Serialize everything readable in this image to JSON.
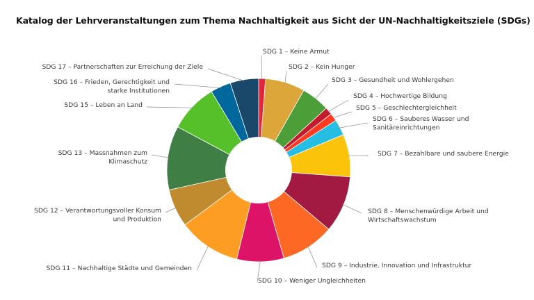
{
  "chart_data": {
    "type": "pie",
    "title": "Katalog der Lehrveranstaltungen zum Thema Nachhaltigkeit aus Sicht der UN-Nachhaltigkeitsziele (SDGs)",
    "slices": [
      {
        "label": [
          "SDG 1 – Keine Armut"
        ],
        "value": 1.2,
        "color": "#E5243B"
      },
      {
        "label": [
          "SDG 2 – Kein Hunger"
        ],
        "value": 7.0,
        "color": "#DDA63A"
      },
      {
        "label": [
          "SDG 3 – Gesundheit und Wohlergehen"
        ],
        "value": 5.0,
        "color": "#4C9F38"
      },
      {
        "label": [
          "SDG 4 – Hochwertige Bildung"
        ],
        "value": 1.3,
        "color": "#C5192D"
      },
      {
        "label": [
          "SDG 5 – Geschlechtergleichheit"
        ],
        "value": 1.4,
        "color": "#FF3A21"
      },
      {
        "label": [
          "SDG 6 – Sauberes Wasser und",
          "Sanitäreinrichtungen"
        ],
        "value": 2.8,
        "color": "#26BDE2"
      },
      {
        "label": [
          "SDG 7 – Bezahlbare und saubere Energie"
        ],
        "value": 7.5,
        "color": "#FCC30B"
      },
      {
        "label": [
          "SDG 8 – Menschenwürdige Arbeit und",
          "Wirtschaftswachstum"
        ],
        "value": 10.0,
        "color": "#A21942"
      },
      {
        "label": [
          "SDG 9 – Industrie, Innovation und Infrastruktur"
        ],
        "value": 9.4,
        "color": "#FD6925"
      },
      {
        "label": [
          "SDG 10 – Weniger Ungleichheiten"
        ],
        "value": 8.3,
        "color": "#DD1367"
      },
      {
        "label": [
          "SDG 11 – Nachhaltige Städte und Gemeinden"
        ],
        "value": 11.0,
        "color": "#FD9D24"
      },
      {
        "label": [
          "SDG 12 – Verantwortungsvoller Konsum",
          "und Produktion"
        ],
        "value": 6.7,
        "color": "#BF8B2E"
      },
      {
        "label": [
          "SDG 13 – Massnahmen zum",
          "Klimaschutz"
        ],
        "value": 11.3,
        "color": "#3F7E44"
      },
      {
        "label": [
          "SDG 15 – Leben an Land"
        ],
        "value": 8.6,
        "color": "#56C02B"
      },
      {
        "label": [
          "SDG 16 – Frieden, Gerechtigkeit und",
          "starke Institutionen"
        ],
        "value": 3.6,
        "color": "#00689D"
      },
      {
        "label": [
          "SDG 17 – Partnerschaften zur Erreichung der Ziele"
        ],
        "value": 5.0,
        "color": "#19486A"
      }
    ],
    "donut_hole": true,
    "legend": "none"
  }
}
